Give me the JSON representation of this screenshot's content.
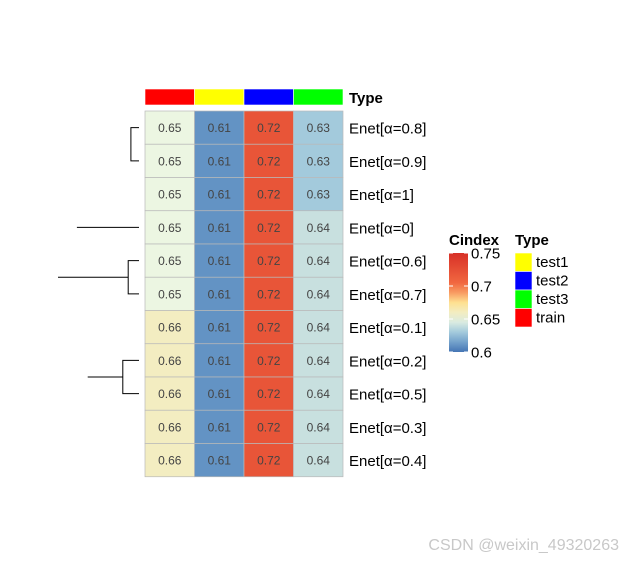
{
  "chart_data": {
    "type": "heatmap",
    "annotation_label": "Type",
    "annotation": [
      "train",
      "test1",
      "test2",
      "test3"
    ],
    "rows": [
      "Enet[α=0.8]",
      "Enet[α=0.9]",
      "Enet[α=1]",
      "Enet[α=0]",
      "Enet[α=0.6]",
      "Enet[α=0.7]",
      "Enet[α=0.1]",
      "Enet[α=0.2]",
      "Enet[α=0.5]",
      "Enet[α=0.3]",
      "Enet[α=0.4]"
    ],
    "values": [
      [
        0.65,
        0.61,
        0.72,
        0.63
      ],
      [
        0.65,
        0.61,
        0.72,
        0.63
      ],
      [
        0.65,
        0.61,
        0.72,
        0.63
      ],
      [
        0.65,
        0.61,
        0.72,
        0.64
      ],
      [
        0.65,
        0.61,
        0.72,
        0.64
      ],
      [
        0.65,
        0.61,
        0.72,
        0.64
      ],
      [
        0.66,
        0.61,
        0.72,
        0.64
      ],
      [
        0.66,
        0.61,
        0.72,
        0.64
      ],
      [
        0.66,
        0.61,
        0.72,
        0.64
      ],
      [
        0.66,
        0.61,
        0.72,
        0.64
      ],
      [
        0.66,
        0.61,
        0.72,
        0.64
      ]
    ],
    "color_legend": {
      "title": "Cindex",
      "ticks": [
        "0.75",
        "0.7",
        "0.65",
        "0.6"
      ],
      "range": [
        0.6,
        0.75
      ]
    },
    "type_legend": {
      "title": "Type",
      "entries": [
        {
          "label": "test1",
          "color": "#FFFF00"
        },
        {
          "label": "test2",
          "color": "#0000FF"
        },
        {
          "label": "test3",
          "color": "#00FF00"
        },
        {
          "label": "train",
          "color": "#FF0000"
        }
      ]
    },
    "type_colors": {
      "train": "#FF0000",
      "test1": "#FFFF00",
      "test2": "#0000FF",
      "test3": "#00FF00"
    },
    "dendrogram": [
      [
        0,
        1
      ],
      [
        12,
        2
      ],
      [
        4,
        5
      ],
      [
        7,
        8
      ],
      [
        15,
        9
      ],
      [
        16,
        10
      ],
      [
        17,
        6
      ],
      [
        14,
        18
      ],
      [
        3,
        19
      ],
      [
        13,
        20
      ]
    ]
  },
  "watermark": "CSDN @weixin_49320263"
}
